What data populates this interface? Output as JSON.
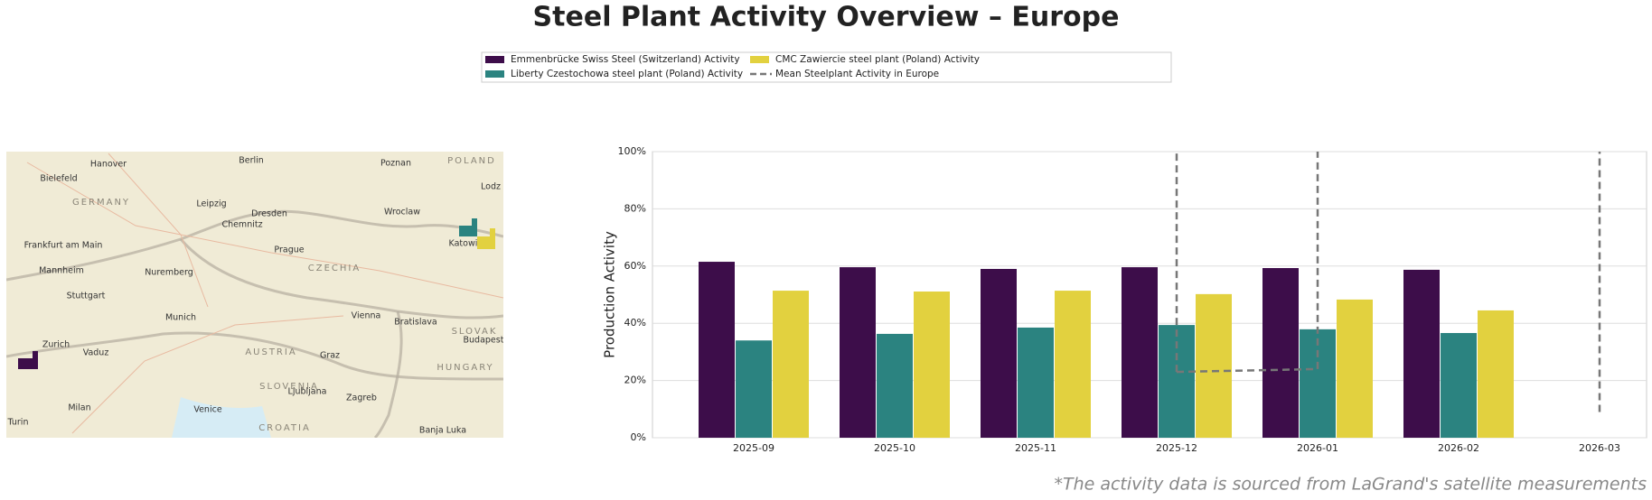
{
  "chart_data": {
    "type": "bar",
    "title": "Steel Plant Activity Overview – Europe",
    "y_label": "Production Activity",
    "footnote": "*The activity data is sourced from LaGrand's satellite measurements",
    "categories": [
      "2025-09",
      "2025-10",
      "2025-11",
      "2025-12",
      "2026-01",
      "2026-02",
      "2026-03"
    ],
    "series": [
      {
        "name": "Emmenbrücke Swiss Steel (Switzerland) Activity",
        "color": "#3d0d4a",
        "values": [
          61.5,
          59.6,
          59,
          59.6,
          59.3,
          58.7,
          null
        ]
      },
      {
        "name": "Liberty Czestochowa steel plant (Poland) Activity",
        "color": "#2b8380",
        "values": [
          34,
          36.3,
          38.5,
          39.4,
          37.9,
          36.6,
          null
        ]
      },
      {
        "name": "CMC Zawiercie steel plant (Poland) Activity",
        "color": "#e2d13f",
        "values": [
          51.4,
          51.1,
          51.4,
          50.2,
          48.3,
          44.5,
          null
        ]
      },
      {
        "name": "Mean Steelplant Activity in Europe",
        "type": "line",
        "linestyle": "dashed",
        "color": "#777777",
        "values": [
          null,
          null,
          null,
          23,
          24,
          null,
          9
        ]
      }
    ],
    "ylim": [
      0,
      100
    ],
    "yticks": [
      {
        "value": 0,
        "label": "0%"
      },
      {
        "value": 20,
        "label": "20%"
      },
      {
        "value": 40,
        "label": "40%"
      },
      {
        "value": 60,
        "label": "60%"
      },
      {
        "value": 80,
        "label": "80%"
      },
      {
        "value": 100,
        "label": "100%"
      }
    ],
    "grid": true,
    "legend": "top"
  },
  "map": {
    "labels": [
      "Berlin",
      "Poznan",
      "POLAND",
      "Hanover",
      "Bielefeld",
      "GERMANY",
      "Leipzig",
      "Dresden",
      "Wroclaw",
      "Chemnitz",
      "Frankfurt am Main",
      "Prague",
      "CZECHIA",
      "Katowice",
      "Lodz",
      "Mannheim",
      "Nuremberg",
      "Stuttgart",
      "Munich",
      "Vienna",
      "Bratislava",
      "SLOVAK",
      "Zurich",
      "Vaduz",
      "AUSTRIA",
      "Graz",
      "Budapest",
      "HUNGARY",
      "SLOVENIA",
      "Ljubljana",
      "Zagreb",
      "Milan",
      "Venice",
      "Turin",
      "CROATIA",
      "Banja Luka"
    ]
  }
}
